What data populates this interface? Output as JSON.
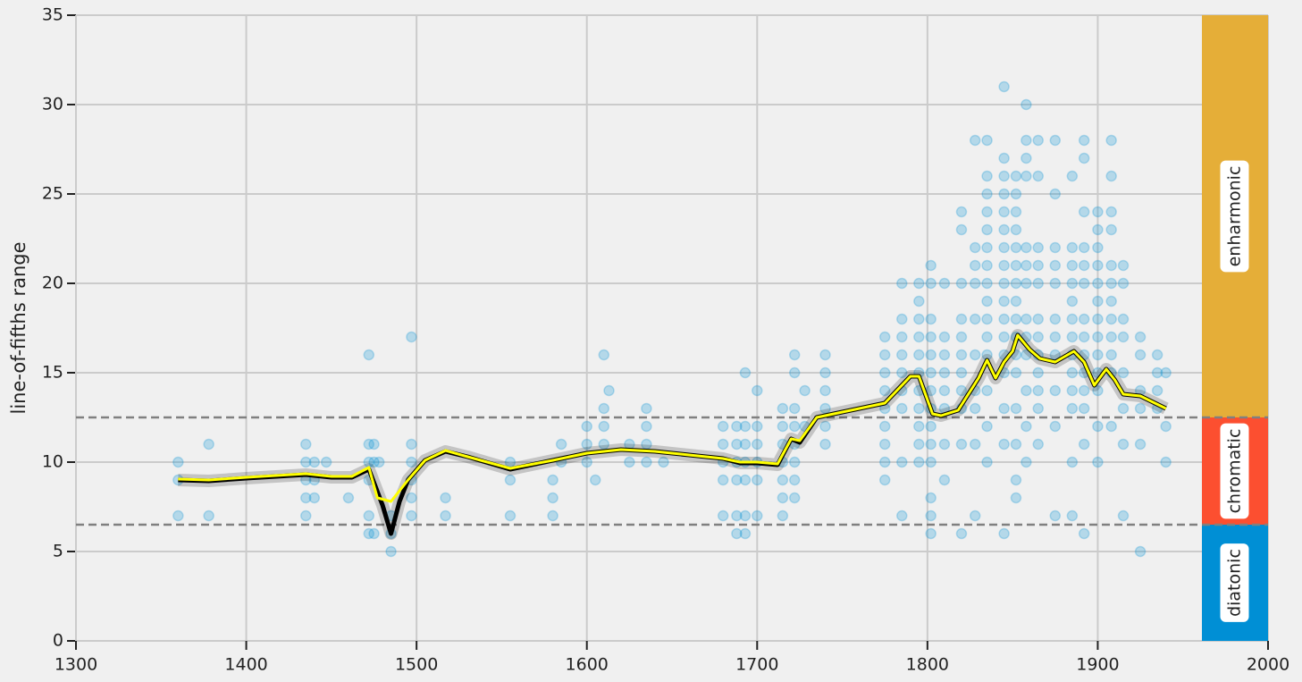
{
  "chart_data": {
    "type": "scatter",
    "y_label": "line-of-fifths range",
    "xlim": [
      1300,
      2000
    ],
    "ylim": [
      0,
      35
    ],
    "xticks": [
      1300,
      1400,
      1500,
      1600,
      1700,
      1800,
      1900,
      2000
    ],
    "yticks": [
      0,
      5,
      10,
      15,
      20,
      25,
      30,
      35
    ],
    "grid": true,
    "points": {
      "color": "#008fd5",
      "x": [
        1360,
        1360,
        1360,
        1378,
        1378,
        1435,
        1435,
        1435,
        1435,
        1435,
        1440,
        1440,
        1440,
        1447,
        1460,
        1472,
        1472,
        1472,
        1472,
        1472,
        1472,
        1475,
        1475,
        1475,
        1478,
        1485,
        1485,
        1485,
        1497,
        1497,
        1497,
        1497,
        1497,
        1497,
        1517,
        1517,
        1555,
        1555,
        1555,
        1580,
        1580,
        1580,
        1585,
        1585,
        1600,
        1600,
        1600,
        1605,
        1610,
        1610,
        1610,
        1610,
        1613,
        1625,
        1625,
        1635,
        1635,
        1635,
        1635,
        1645,
        1680,
        1680,
        1680,
        1680,
        1680,
        1688,
        1688,
        1688,
        1688,
        1688,
        1688,
        1693,
        1693,
        1693,
        1693,
        1693,
        1693,
        1693,
        1700,
        1700,
        1700,
        1700,
        1700,
        1700,
        1715,
        1715,
        1715,
        1715,
        1715,
        1715,
        1715,
        1722,
        1722,
        1722,
        1722,
        1722,
        1722,
        1722,
        1722,
        1728,
        1728,
        1740,
        1740,
        1740,
        1740,
        1740,
        1740,
        1775,
        1775,
        1775,
        1775,
        1775,
        1775,
        1775,
        1775,
        1775,
        1785,
        1785,
        1785,
        1785,
        1785,
        1785,
        1785,
        1785,
        1785,
        1795,
        1795,
        1795,
        1795,
        1795,
        1795,
        1795,
        1795,
        1795,
        1795,
        1795,
        1802,
        1802,
        1802,
        1802,
        1802,
        1802,
        1802,
        1802,
        1802,
        1802,
        1802,
        1802,
        1802,
        1802,
        1810,
        1810,
        1810,
        1810,
        1810,
        1810,
        1810,
        1810,
        1820,
        1820,
        1820,
        1820,
        1820,
        1820,
        1820,
        1820,
        1820,
        1820,
        1820,
        1828,
        1828,
        1828,
        1828,
        1828,
        1828,
        1828,
        1828,
        1828,
        1828,
        1835,
        1835,
        1835,
        1835,
        1835,
        1835,
        1835,
        1835,
        1835,
        1835,
        1835,
        1835,
        1835,
        1835,
        1835,
        1845,
        1845,
        1845,
        1845,
        1845,
        1845,
        1845,
        1845,
        1845,
        1845,
        1845,
        1845,
        1845,
        1845,
        1845,
        1845,
        1845,
        1852,
        1852,
        1852,
        1852,
        1852,
        1852,
        1852,
        1852,
        1852,
        1852,
        1852,
        1852,
        1852,
        1852,
        1852,
        1852,
        1858,
        1858,
        1858,
        1858,
        1858,
        1858,
        1858,
        1858,
        1858,
        1858,
        1858,
        1858,
        1858,
        1865,
        1865,
        1865,
        1865,
        1865,
        1865,
        1865,
        1865,
        1865,
        1865,
        1865,
        1865,
        1875,
        1875,
        1875,
        1875,
        1875,
        1875,
        1875,
        1875,
        1875,
        1875,
        1875,
        1885,
        1885,
        1885,
        1885,
        1885,
        1885,
        1885,
        1885,
        1885,
        1885,
        1885,
        1885,
        1885,
        1892,
        1892,
        1892,
        1892,
        1892,
        1892,
        1892,
        1892,
        1892,
        1892,
        1892,
        1892,
        1892,
        1892,
        1900,
        1900,
        1900,
        1900,
        1900,
        1900,
        1900,
        1900,
        1900,
        1900,
        1900,
        1900,
        1900,
        1908,
        1908,
        1908,
        1908,
        1908,
        1908,
        1908,
        1908,
        1908,
        1908,
        1908,
        1908,
        1915,
        1915,
        1915,
        1915,
        1915,
        1915,
        1915,
        1915,
        1925,
        1925,
        1925,
        1925,
        1925,
        1925,
        1935,
        1935,
        1935,
        1935,
        1940,
        1940,
        1940
      ],
      "y": [
        10,
        9,
        7,
        11,
        7,
        11,
        10,
        9,
        8,
        7,
        10,
        9,
        8,
        10,
        8,
        16,
        11,
        10,
        9,
        7,
        6,
        11,
        10,
        6,
        10,
        7,
        6,
        5,
        17,
        11,
        10,
        9,
        8,
        7,
        8,
        7,
        10,
        9,
        7,
        9,
        8,
        7,
        11,
        10,
        12,
        11,
        10,
        9,
        16,
        13,
        12,
        11,
        14,
        11,
        10,
        13,
        12,
        11,
        10,
        10,
        12,
        11,
        10,
        9,
        7,
        12,
        11,
        10,
        9,
        7,
        6,
        15,
        12,
        11,
        10,
        9,
        7,
        6,
        14,
        12,
        11,
        10,
        9,
        7,
        13,
        12,
        11,
        10,
        9,
        8,
        7,
        16,
        15,
        13,
        12,
        11,
        10,
        9,
        8,
        14,
        12,
        16,
        15,
        14,
        13,
        12,
        11,
        17,
        16,
        15,
        14,
        13,
        12,
        11,
        10,
        9,
        20,
        18,
        17,
        16,
        15,
        14,
        13,
        10,
        7,
        20,
        19,
        18,
        17,
        16,
        15,
        14,
        13,
        12,
        11,
        10,
        21,
        20,
        18,
        17,
        16,
        15,
        14,
        13,
        12,
        11,
        10,
        8,
        7,
        6,
        20,
        17,
        16,
        15,
        14,
        13,
        11,
        9,
        24,
        23,
        20,
        18,
        17,
        16,
        15,
        14,
        13,
        11,
        6,
        28,
        22,
        21,
        20,
        18,
        16,
        14,
        13,
        11,
        7,
        28,
        26,
        25,
        24,
        23,
        22,
        21,
        20,
        19,
        18,
        17,
        16,
        14,
        12,
        10,
        31,
        27,
        26,
        25,
        24,
        23,
        22,
        21,
        20,
        19,
        18,
        17,
        16,
        15,
        13,
        11,
        6,
        26,
        25,
        24,
        23,
        22,
        21,
        20,
        19,
        18,
        17,
        16,
        15,
        13,
        11,
        9,
        8,
        30,
        28,
        27,
        26,
        22,
        21,
        20,
        18,
        17,
        16,
        14,
        12,
        10,
        28,
        26,
        22,
        21,
        20,
        18,
        17,
        16,
        15,
        14,
        13,
        11,
        28,
        25,
        22,
        21,
        20,
        18,
        17,
        16,
        14,
        12,
        7,
        26,
        22,
        21,
        20,
        19,
        18,
        17,
        16,
        15,
        14,
        13,
        10,
        7,
        28,
        27,
        24,
        22,
        21,
        20,
        18,
        17,
        16,
        15,
        14,
        13,
        11,
        6,
        24,
        23,
        22,
        21,
        20,
        19,
        18,
        17,
        16,
        15,
        14,
        12,
        10,
        28,
        26,
        24,
        23,
        21,
        20,
        19,
        18,
        17,
        16,
        15,
        12,
        21,
        20,
        18,
        17,
        15,
        13,
        11,
        7,
        17,
        16,
        14,
        13,
        11,
        5,
        16,
        15,
        14,
        13,
        15,
        12,
        10
      ]
    },
    "lines": [
      {
        "color": "#000000",
        "x": [
          1360,
          1378,
          1400,
          1435,
          1450,
          1462,
          1472,
          1480,
          1485,
          1490,
          1495,
          1505,
          1517,
          1530,
          1555,
          1580,
          1600,
          1620,
          1640,
          1660,
          1680,
          1690,
          1700,
          1712,
          1720,
          1725,
          1735,
          1760,
          1775,
          1790,
          1795,
          1803,
          1808,
          1818,
          1830,
          1835,
          1840,
          1845,
          1850,
          1853,
          1860,
          1866,
          1875,
          1886,
          1892,
          1898,
          1905,
          1910,
          1915,
          1925,
          1940
        ],
        "y": [
          9.0,
          8.95,
          9.1,
          9.3,
          9.15,
          9.15,
          9.6,
          7.6,
          6.0,
          7.8,
          9.0,
          10.1,
          10.6,
          10.3,
          9.6,
          10.1,
          10.5,
          10.7,
          10.6,
          10.4,
          10.2,
          9.95,
          9.95,
          9.85,
          11.3,
          11.1,
          12.5,
          13.0,
          13.3,
          14.8,
          14.8,
          12.7,
          12.6,
          12.9,
          14.7,
          15.7,
          14.7,
          15.6,
          16.2,
          17.1,
          16.3,
          15.8,
          15.6,
          16.2,
          15.6,
          14.3,
          15.2,
          14.6,
          13.8,
          13.7,
          13.0
        ]
      },
      {
        "color": "#ffff00",
        "x": [
          1360,
          1378,
          1400,
          1435,
          1450,
          1462,
          1472,
          1477,
          1485,
          1495,
          1505,
          1517,
          1530,
          1555,
          1580,
          1600,
          1620,
          1640,
          1660,
          1680,
          1690,
          1700,
          1712,
          1720,
          1725,
          1735,
          1760,
          1775,
          1790,
          1795,
          1803,
          1808,
          1818,
          1830,
          1835,
          1840,
          1845,
          1850,
          1853,
          1860,
          1866,
          1875,
          1886,
          1892,
          1898,
          1905,
          1910,
          1915,
          1925,
          1940
        ],
        "y": [
          9.05,
          9.0,
          9.15,
          9.35,
          9.2,
          9.2,
          9.7,
          8.0,
          7.8,
          9.0,
          10.1,
          10.65,
          10.3,
          9.65,
          10.1,
          10.5,
          10.7,
          10.6,
          10.4,
          10.2,
          10.0,
          10.0,
          9.9,
          11.3,
          11.2,
          12.5,
          13.0,
          13.3,
          14.8,
          14.8,
          12.7,
          12.6,
          12.9,
          14.7,
          15.7,
          14.7,
          15.6,
          16.2,
          17.1,
          16.3,
          15.8,
          15.6,
          16.2,
          15.6,
          14.3,
          15.2,
          14.6,
          13.8,
          13.7,
          13.0
        ]
      }
    ],
    "thresholds": [
      6.5,
      12.5
    ],
    "regions": [
      {
        "label": "diatonic",
        "color": "#008fd5",
        "range": [
          0,
          6.5
        ]
      },
      {
        "label": "chromatic",
        "color": "#fc4f30",
        "range": [
          6.5,
          12.5
        ]
      },
      {
        "label": "enharmonic",
        "color": "#e5ae38",
        "range": [
          12.5,
          35
        ]
      }
    ]
  }
}
